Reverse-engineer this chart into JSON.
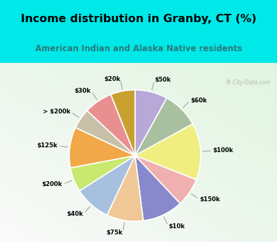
{
  "title": "Income distribution in Granby, CT (%)",
  "subtitle": "American Indian and Alaska Native residents",
  "title_color": "#000000",
  "subtitle_color": "#2a7a7a",
  "bg_cyan": "#00e8e8",
  "chart_bg_top": "#e8f8f0",
  "chart_bg_bottom": "#b8e8c8",
  "slices": [
    {
      "label": "$50k",
      "value": 8,
      "color": "#b8a8d8"
    },
    {
      "label": "$60k",
      "value": 9,
      "color": "#a8c0a0"
    },
    {
      "label": "$100k",
      "value": 14,
      "color": "#f0ee80"
    },
    {
      "label": "$150k",
      "value": 7,
      "color": "#f0b0b0"
    },
    {
      "label": "$10k",
      "value": 10,
      "color": "#8888cc"
    },
    {
      "label": "$75k",
      "value": 9,
      "color": "#f0c898"
    },
    {
      "label": "$40k",
      "value": 9,
      "color": "#a8c0e0"
    },
    {
      "label": "$200k",
      "value": 6,
      "color": "#c8e870"
    },
    {
      "label": "$125k",
      "value": 10,
      "color": "#f0a848"
    },
    {
      "label": "> $200k",
      "value": 5,
      "color": "#c8c0a8"
    },
    {
      "label": "$30k",
      "value": 7,
      "color": "#e89090"
    },
    {
      "label": "$20k",
      "value": 6,
      "color": "#c8a030"
    }
  ]
}
